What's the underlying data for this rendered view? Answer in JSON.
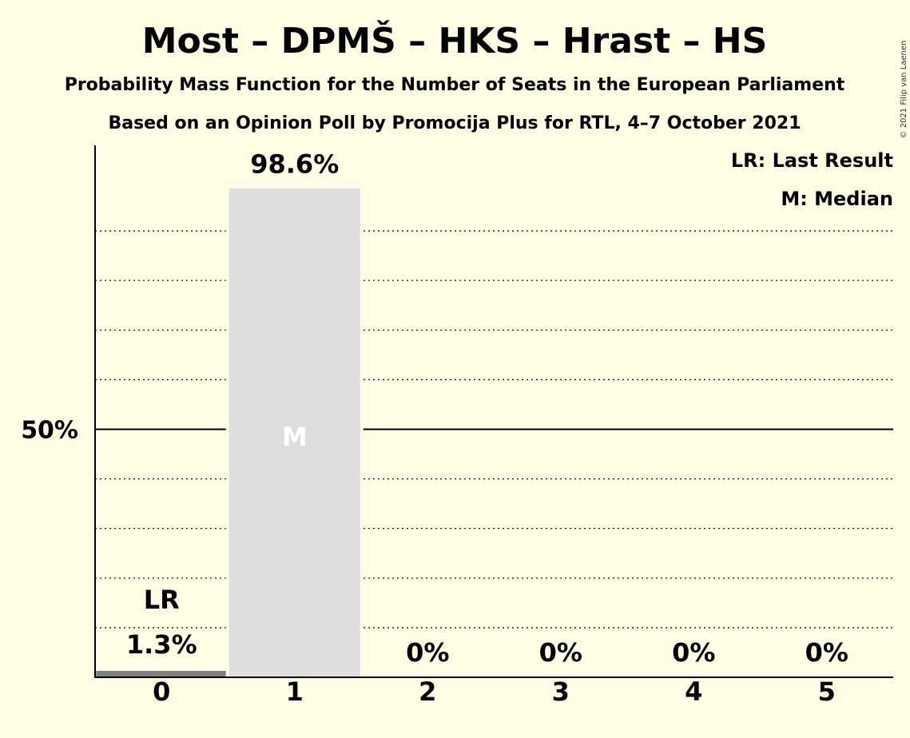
{
  "title": "Most – DPMŠ – HKS – Hrast – HS",
  "subtitle1": "Probability Mass Function for the Number of Seats in the European Parliament",
  "subtitle2": "Based on an Opinion Poll by Promocija Plus for RTL, 4–7 October 2021",
  "copyright": "© 2021 Filip van Laenen",
  "legend": {
    "lr": "LR: Last Result",
    "m": "M: Median"
  },
  "colors": {
    "background": "#FFFDE5",
    "median_bar": "#DEDEDE",
    "last_result_bar": "#808080",
    "median_text": "#FFFFFF"
  },
  "chart_data": {
    "type": "bar",
    "categories": [
      "0",
      "1",
      "2",
      "3",
      "4",
      "5"
    ],
    "values": [
      1.3,
      98.6,
      0,
      0,
      0,
      0
    ],
    "value_labels": [
      "1.3%",
      "98.6%",
      "0%",
      "0%",
      "0%",
      "0%"
    ],
    "ylim": [
      0,
      115
    ],
    "yticks": [
      {
        "value": 50,
        "label": "50%"
      }
    ],
    "gridlines": [
      10,
      20,
      30,
      40,
      60,
      70,
      80,
      90
    ],
    "last_result_index": 0,
    "last_result_label": "LR",
    "median_index": 1,
    "median_label": "M",
    "legend_position": "top-right"
  }
}
